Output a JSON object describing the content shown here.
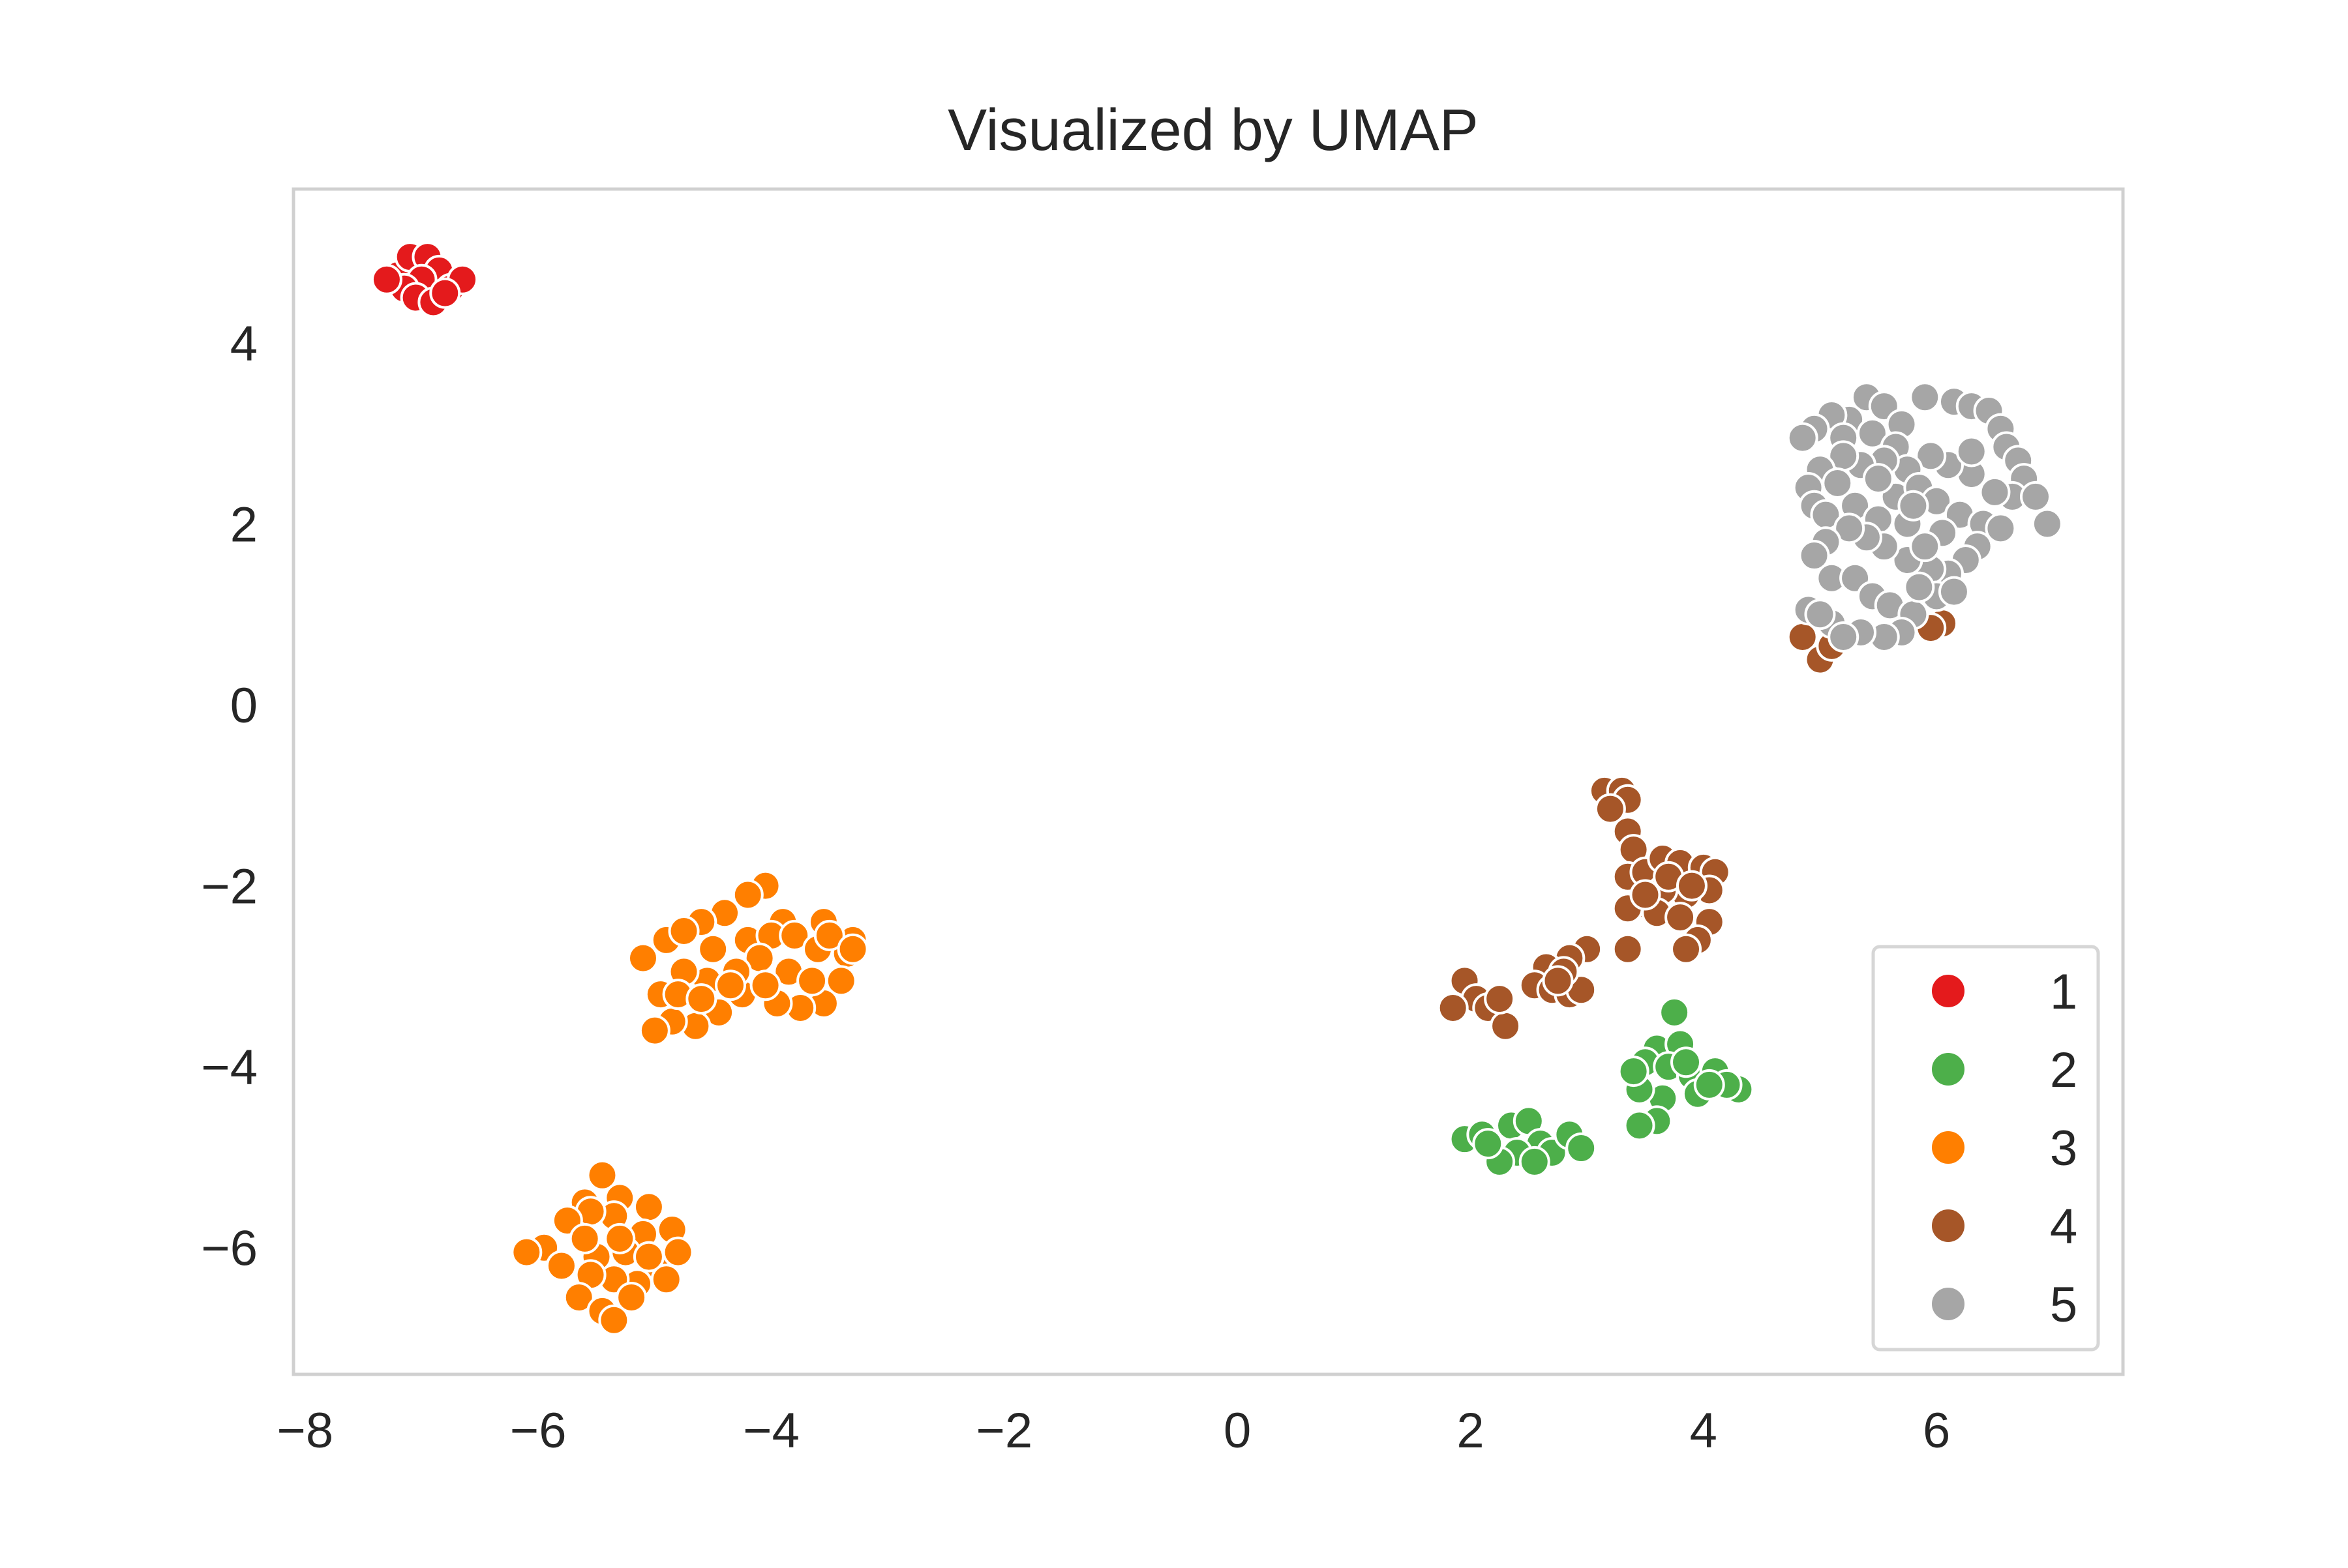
{
  "chart_data": {
    "type": "scatter",
    "title": "Visualized by UMAP",
    "xlabel": "",
    "ylabel": "",
    "xlim": [
      -8.1,
      7.6
    ],
    "ylim": [
      -7.4,
      5.7
    ],
    "xticks": [
      -8,
      -6,
      -4,
      -2,
      0,
      2,
      4,
      6
    ],
    "yticks": [
      -6,
      -4,
      -2,
      0,
      2,
      4
    ],
    "xtick_labels": [
      "−8",
      "−6",
      "−4",
      "−2",
      "0",
      "2",
      "4",
      "6"
    ],
    "ytick_labels": [
      "−6",
      "−4",
      "−2",
      "0",
      "2",
      "4"
    ],
    "grid": false,
    "legend_position": "bottom-right",
    "series": [
      {
        "name": "1",
        "color": "#e41a1c",
        "points": [
          [
            -7.2,
            4.75
          ],
          [
            -7.1,
            4.95
          ],
          [
            -6.95,
            4.95
          ],
          [
            -6.85,
            4.8
          ],
          [
            -7.0,
            4.7
          ],
          [
            -7.15,
            4.6
          ],
          [
            -7.05,
            4.5
          ],
          [
            -6.9,
            4.45
          ],
          [
            -6.75,
            4.6
          ],
          [
            -6.65,
            4.7
          ],
          [
            -7.3,
            4.7
          ],
          [
            -6.8,
            4.55
          ]
        ]
      },
      {
        "name": "2",
        "color": "#4daf4a",
        "points": [
          [
            3.75,
            -3.4
          ],
          [
            3.6,
            -3.8
          ],
          [
            3.8,
            -3.75
          ],
          [
            3.5,
            -3.95
          ],
          [
            3.7,
            -4.0
          ],
          [
            3.9,
            -4.1
          ],
          [
            4.1,
            -4.05
          ],
          [
            4.3,
            -4.25
          ],
          [
            3.95,
            -4.3
          ],
          [
            3.65,
            -4.35
          ],
          [
            3.45,
            -4.25
          ],
          [
            3.4,
            -4.05
          ],
          [
            3.6,
            -4.6
          ],
          [
            3.45,
            -4.65
          ],
          [
            4.2,
            -4.2
          ],
          [
            3.85,
            -3.95
          ],
          [
            4.05,
            -4.2
          ],
          [
            1.95,
            -4.8
          ],
          [
            2.1,
            -4.75
          ],
          [
            2.35,
            -4.65
          ],
          [
            2.5,
            -4.6
          ],
          [
            2.6,
            -4.85
          ],
          [
            2.4,
            -4.95
          ],
          [
            2.25,
            -5.05
          ],
          [
            2.7,
            -4.95
          ],
          [
            2.85,
            -4.75
          ],
          [
            2.95,
            -4.9
          ],
          [
            2.55,
            -5.05
          ],
          [
            2.15,
            -4.85
          ]
        ]
      },
      {
        "name": "3",
        "color": "#ff7f00",
        "points": [
          [
            -4.05,
            -2.0
          ],
          [
            -4.2,
            -2.1
          ],
          [
            -3.9,
            -2.4
          ],
          [
            -4.4,
            -2.3
          ],
          [
            -4.6,
            -2.4
          ],
          [
            -3.55,
            -2.4
          ],
          [
            -3.3,
            -2.6
          ],
          [
            -3.35,
            -2.75
          ],
          [
            -3.4,
            -3.05
          ],
          [
            -3.55,
            -3.3
          ],
          [
            -3.75,
            -3.35
          ],
          [
            -3.95,
            -3.3
          ],
          [
            -4.25,
            -3.2
          ],
          [
            -4.45,
            -3.4
          ],
          [
            -4.65,
            -3.55
          ],
          [
            -4.85,
            -3.5
          ],
          [
            -5.0,
            -3.6
          ],
          [
            -4.95,
            -3.2
          ],
          [
            -5.1,
            -2.8
          ],
          [
            -4.9,
            -2.6
          ],
          [
            -4.75,
            -2.5
          ],
          [
            -4.5,
            -2.7
          ],
          [
            -4.2,
            -2.6
          ],
          [
            -4.0,
            -2.55
          ],
          [
            -3.8,
            -2.55
          ],
          [
            -3.6,
            -2.7
          ],
          [
            -4.1,
            -2.8
          ],
          [
            -4.3,
            -2.95
          ],
          [
            -4.55,
            -3.05
          ],
          [
            -4.75,
            -2.95
          ],
          [
            -4.8,
            -3.2
          ],
          [
            -4.6,
            -3.25
          ],
          [
            -4.35,
            -3.1
          ],
          [
            -3.85,
            -2.95
          ],
          [
            -3.65,
            -3.05
          ],
          [
            -3.5,
            -2.55
          ],
          [
            -4.05,
            -3.1
          ],
          [
            -3.3,
            -2.7
          ],
          [
            -5.45,
            -5.2
          ],
          [
            -5.6,
            -5.5
          ],
          [
            -5.3,
            -5.45
          ],
          [
            -5.05,
            -5.55
          ],
          [
            -4.85,
            -5.8
          ],
          [
            -5.1,
            -5.85
          ],
          [
            -5.35,
            -5.65
          ],
          [
            -5.55,
            -5.6
          ],
          [
            -5.75,
            -5.7
          ],
          [
            -5.95,
            -6.0
          ],
          [
            -6.1,
            -6.05
          ],
          [
            -5.8,
            -6.2
          ],
          [
            -5.5,
            -6.1
          ],
          [
            -5.25,
            -6.05
          ],
          [
            -4.95,
            -6.25
          ],
          [
            -4.9,
            -6.35
          ],
          [
            -5.15,
            -6.4
          ],
          [
            -5.35,
            -6.35
          ],
          [
            -5.55,
            -6.3
          ],
          [
            -5.65,
            -6.55
          ],
          [
            -5.45,
            -6.7
          ],
          [
            -5.35,
            -6.8
          ],
          [
            -5.2,
            -6.55
          ],
          [
            -5.05,
            -6.1
          ],
          [
            -4.8,
            -6.05
          ],
          [
            -5.6,
            -5.9
          ],
          [
            -5.3,
            -5.9
          ]
        ]
      },
      {
        "name": "4",
        "color": "#a65628",
        "points": [
          [
            3.15,
            -0.95
          ],
          [
            3.3,
            -0.95
          ],
          [
            3.35,
            -1.05
          ],
          [
            3.2,
            -1.15
          ],
          [
            3.35,
            -1.4
          ],
          [
            3.4,
            -1.6
          ],
          [
            3.35,
            -1.9
          ],
          [
            3.5,
            -1.85
          ],
          [
            3.65,
            -1.7
          ],
          [
            3.8,
            -1.75
          ],
          [
            4.0,
            -1.8
          ],
          [
            4.1,
            -1.85
          ],
          [
            4.05,
            -2.05
          ],
          [
            3.85,
            -2.1
          ],
          [
            3.65,
            -2.05
          ],
          [
            3.45,
            -2.2
          ],
          [
            3.35,
            -2.25
          ],
          [
            3.6,
            -2.3
          ],
          [
            3.8,
            -2.35
          ],
          [
            4.05,
            -2.4
          ],
          [
            3.95,
            -2.6
          ],
          [
            3.85,
            -2.7
          ],
          [
            3.5,
            -2.1
          ],
          [
            3.7,
            -1.9
          ],
          [
            3.9,
            -2.0
          ],
          [
            3.35,
            -2.7
          ],
          [
            3.0,
            -2.7
          ],
          [
            2.85,
            -2.8
          ],
          [
            2.65,
            -2.9
          ],
          [
            2.55,
            -3.1
          ],
          [
            2.7,
            -3.15
          ],
          [
            2.85,
            -3.2
          ],
          [
            2.95,
            -3.15
          ],
          [
            2.8,
            -2.95
          ],
          [
            2.75,
            -3.05
          ],
          [
            1.95,
            -3.05
          ],
          [
            2.05,
            -3.25
          ],
          [
            1.85,
            -3.35
          ],
          [
            2.15,
            -3.35
          ],
          [
            2.3,
            -3.55
          ],
          [
            2.25,
            -3.25
          ],
          [
            4.85,
            0.75
          ],
          [
            5.0,
            0.5
          ],
          [
            5.1,
            0.65
          ],
          [
            6.05,
            0.9
          ],
          [
            5.95,
            0.85
          ]
        ]
      },
      {
        "name": "5",
        "color": "#a6a6a6",
        "points": [
          [
            5.4,
            3.4
          ],
          [
            5.55,
            3.3
          ],
          [
            5.7,
            3.1
          ],
          [
            5.25,
            3.15
          ],
          [
            5.1,
            3.2
          ],
          [
            4.95,
            3.05
          ],
          [
            4.85,
            2.95
          ],
          [
            5.2,
            2.95
          ],
          [
            5.45,
            3.0
          ],
          [
            5.65,
            2.85
          ],
          [
            5.9,
            3.4
          ],
          [
            6.15,
            3.35
          ],
          [
            6.3,
            3.3
          ],
          [
            6.45,
            3.25
          ],
          [
            6.55,
            3.05
          ],
          [
            6.6,
            2.85
          ],
          [
            6.7,
            2.7
          ],
          [
            6.75,
            2.5
          ],
          [
            6.65,
            2.3
          ],
          [
            6.5,
            2.35
          ],
          [
            6.3,
            2.55
          ],
          [
            6.1,
            2.65
          ],
          [
            5.95,
            2.75
          ],
          [
            5.75,
            2.6
          ],
          [
            5.55,
            2.7
          ],
          [
            5.35,
            2.65
          ],
          [
            5.2,
            2.75
          ],
          [
            5.0,
            2.6
          ],
          [
            4.9,
            2.4
          ],
          [
            4.95,
            2.2
          ],
          [
            5.05,
            2.1
          ],
          [
            5.3,
            2.2
          ],
          [
            5.5,
            2.05
          ],
          [
            5.65,
            2.3
          ],
          [
            5.85,
            2.4
          ],
          [
            6.0,
            2.25
          ],
          [
            6.2,
            2.1
          ],
          [
            6.4,
            2.0
          ],
          [
            6.55,
            1.95
          ],
          [
            6.95,
            2.0
          ],
          [
            6.85,
            2.3
          ],
          [
            6.35,
            1.75
          ],
          [
            6.25,
            1.6
          ],
          [
            6.1,
            1.45
          ],
          [
            5.95,
            1.5
          ],
          [
            5.75,
            1.6
          ],
          [
            5.55,
            1.75
          ],
          [
            5.4,
            1.85
          ],
          [
            5.25,
            1.95
          ],
          [
            5.05,
            1.8
          ],
          [
            4.95,
            1.65
          ],
          [
            5.1,
            1.4
          ],
          [
            5.3,
            1.4
          ],
          [
            5.45,
            1.2
          ],
          [
            5.6,
            1.1
          ],
          [
            5.8,
            1.0
          ],
          [
            6.0,
            1.2
          ],
          [
            6.15,
            1.25
          ],
          [
            5.85,
            1.3
          ],
          [
            5.7,
            0.8
          ],
          [
            5.55,
            0.75
          ],
          [
            5.35,
            0.8
          ],
          [
            5.1,
            0.9
          ],
          [
            4.9,
            1.05
          ],
          [
            5.0,
            1.0
          ],
          [
            5.2,
            0.75
          ],
          [
            5.75,
            2.0
          ],
          [
            6.05,
            1.9
          ],
          [
            5.9,
            1.75
          ],
          [
            6.3,
            2.8
          ],
          [
            5.5,
            2.5
          ],
          [
            5.15,
            2.45
          ],
          [
            5.8,
            2.2
          ]
        ]
      }
    ]
  }
}
